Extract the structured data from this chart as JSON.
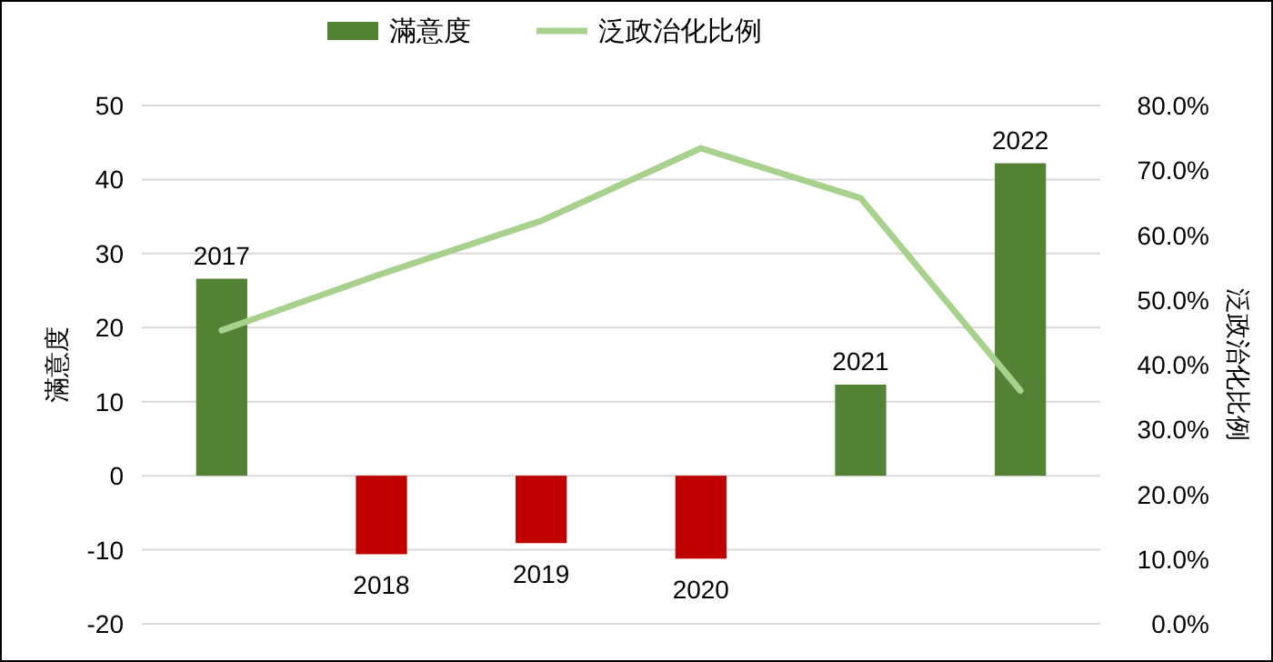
{
  "chart_data": {
    "type": "bar",
    "categories": [
      "2017",
      "2018",
      "2019",
      "2020",
      "2021",
      "2022"
    ],
    "ylabel": "滿意度",
    "y2label": "泛政治化比例",
    "series": [
      {
        "name": "滿意度",
        "values": [
          26.6,
          -10.6,
          -9.1,
          -11.2,
          12.3,
          42.2
        ],
        "colors": [
          "#548235",
          "#c00000",
          "#c00000",
          "#c00000",
          "#548235",
          "#548235"
        ],
        "color": "#548235"
      },
      {
        "name": "泛政治化比例",
        "type": "line",
        "axis": "y2",
        "color": "#a9d18e",
        "values": [
          45.3,
          54.0,
          62.2,
          73.4,
          65.7,
          36.0
        ]
      }
    ],
    "ylim": [
      -20,
      50
    ],
    "yticks": [
      -20,
      -10,
      0,
      10,
      20,
      30,
      40,
      50
    ],
    "y2lim": [
      0,
      80
    ],
    "y2ticks": [
      {
        "value": 0,
        "label": "0.0%"
      },
      {
        "value": 10,
        "label": "10.0%"
      },
      {
        "value": 20,
        "label": "20.0%"
      },
      {
        "value": 30,
        "label": "30.0%"
      },
      {
        "value": 40,
        "label": "40.0%"
      },
      {
        "value": 50,
        "label": "50.0%"
      },
      {
        "value": 60,
        "label": "60.0%"
      },
      {
        "value": 70,
        "label": "70.0%"
      },
      {
        "value": 80,
        "label": "80.0%"
      }
    ],
    "grid": "y",
    "legend": "top",
    "marker": "none",
    "line_style": "solid"
  }
}
